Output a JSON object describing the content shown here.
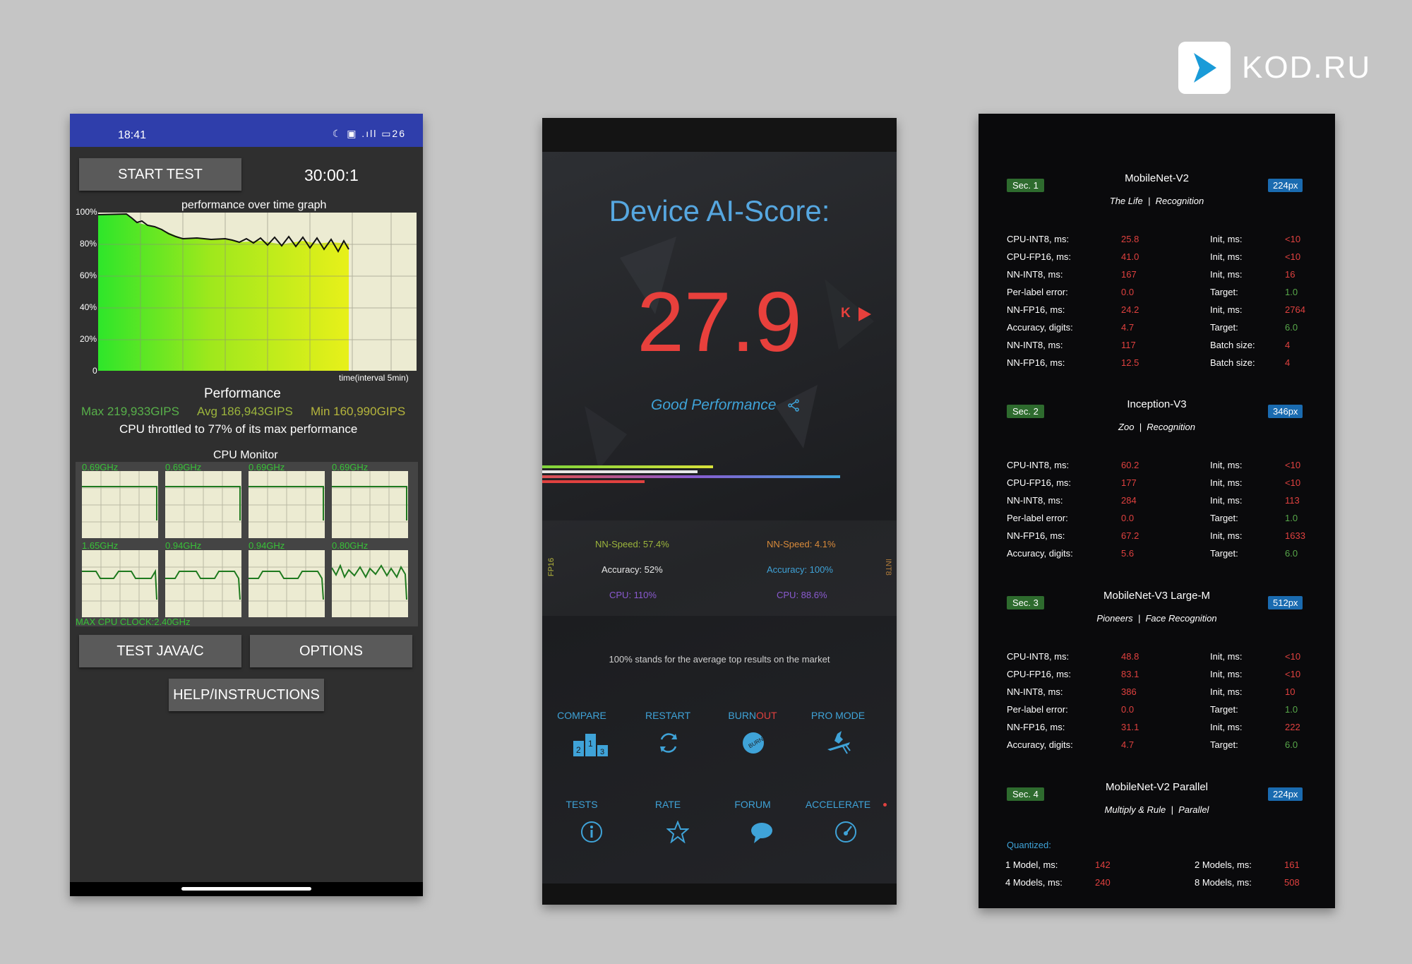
{
  "logo": {
    "text": "KOD.RU"
  },
  "phone1": {
    "status": {
      "time": "18:41",
      "icons": "☾ ▣ .ıll ▭26"
    },
    "start_test": "START TEST",
    "timer": "30:00:1",
    "graph_title": "performance over time graph",
    "y_ticks": [
      "100%",
      "80%",
      "60%",
      "40%",
      "20%",
      "0"
    ],
    "x_label": "time(interval 5min)",
    "perf_title": "Performance",
    "max": "Max 219,933GIPS",
    "avg": "Avg 186,943GIPS",
    "min": "Min 160,990GIPS",
    "throttled": "CPU throttled to 77% of its max performance",
    "cpu_monitor": "CPU Monitor",
    "freqs": [
      "0.69GHz",
      "0.69GHz",
      "0.69GHz",
      "0.69GHz",
      "1.65GHz",
      "0.94GHz",
      "0.94GHz",
      "0.80GHz"
    ],
    "max_clock": "MAX CPU CLOCK:2.40GHz",
    "test_java": "TEST JAVA/C",
    "options": "OPTIONS",
    "help": "HELP/INSTRUCTIONS"
  },
  "phone2": {
    "title": "Device AI-Score:",
    "score": "27.9",
    "k_label": "K",
    "good": "Good Performance",
    "left": {
      "nn_speed": "NN-Speed:  57.4%",
      "accuracy": "Accuracy:  52%",
      "cpu": "CPU:  110%"
    },
    "right": {
      "nn_speed": "NN-Speed:  4.1%",
      "accuracy": "Accuracy:  100%",
      "cpu": "CPU:  88.6%"
    },
    "side_left": "FP16",
    "side_right": "INT8",
    "note": "100% stands for the average top results on the market",
    "actions": {
      "compare": "COMPARE",
      "restart": "RESTART",
      "burn": "BURN",
      "out": "OUT",
      "pro_mode": "PRO MODE",
      "tests": "TESTS",
      "rate": "RATE",
      "forum": "FORUM",
      "accelerate": "ACCELERATE"
    },
    "colors": {
      "accent": "#3fa3d8",
      "score": "#e8403c"
    }
  },
  "phone3": {
    "sections": [
      {
        "sec": "Sec. 1",
        "title": "MobileNet-V2",
        "sub_a": "The Life",
        "sub_b": "Recognition",
        "px": "224px",
        "rows": [
          [
            "CPU-INT8, ms:",
            "25.8",
            "Init, ms:",
            "<10"
          ],
          [
            "CPU-FP16, ms:",
            "41.0",
            "Init, ms:",
            "<10"
          ],
          [
            "NN-INT8, ms:",
            "167",
            "Init, ms:",
            "16"
          ],
          [
            "Per-label error:",
            "0.0",
            "Target:",
            "1.0"
          ],
          [
            "NN-FP16, ms:",
            "24.2",
            "Init, ms:",
            "2764"
          ],
          [
            "Accuracy, digits:",
            "4.7",
            "Target:",
            "6.0"
          ],
          [
            "NN-INT8, ms:",
            "117",
            "Batch size:",
            "4"
          ],
          [
            "NN-FP16, ms:",
            "12.5",
            "Batch size:",
            "4"
          ]
        ]
      },
      {
        "sec": "Sec. 2",
        "title": "Inception-V3",
        "sub_a": "Zoo",
        "sub_b": "Recognition",
        "px": "346px",
        "rows": [
          [
            "CPU-INT8, ms:",
            "60.2",
            "Init, ms:",
            "<10"
          ],
          [
            "CPU-FP16, ms:",
            "177",
            "Init, ms:",
            "<10"
          ],
          [
            "NN-INT8, ms:",
            "284",
            "Init, ms:",
            "113"
          ],
          [
            "Per-label error:",
            "0.0",
            "Target:",
            "1.0"
          ],
          [
            "NN-FP16, ms:",
            "67.2",
            "Init, ms:",
            "1633"
          ],
          [
            "Accuracy, digits:",
            "5.6",
            "Target:",
            "6.0"
          ]
        ]
      },
      {
        "sec": "Sec. 3",
        "title": "MobileNet-V3 Large-M",
        "sub_a": "Pioneers",
        "sub_b": "Face Recognition",
        "px": "512px",
        "rows": [
          [
            "CPU-INT8, ms:",
            "48.8",
            "Init, ms:",
            "<10"
          ],
          [
            "CPU-FP16, ms:",
            "83.1",
            "Init, ms:",
            "<10"
          ],
          [
            "NN-INT8, ms:",
            "386",
            "Init, ms:",
            "10"
          ],
          [
            "Per-label error:",
            "0.0",
            "Target:",
            "1.0"
          ],
          [
            "NN-FP16, ms:",
            "31.1",
            "Init, ms:",
            "222"
          ],
          [
            "Accuracy, digits:",
            "4.7",
            "Target:",
            "6.0"
          ]
        ]
      },
      {
        "sec": "Sec. 4",
        "title": "MobileNet-V2 Parallel",
        "sub_a": "Multiply & Rule",
        "sub_b": "Parallel",
        "px": "224px",
        "rows": []
      }
    ],
    "quantized_label": "Quantized:",
    "quantized": [
      [
        "1 Model, ms:",
        "142",
        "2 Models, ms:",
        "161"
      ],
      [
        "4 Models, ms:",
        "240",
        "8 Models, ms:",
        "508"
      ]
    ]
  }
}
